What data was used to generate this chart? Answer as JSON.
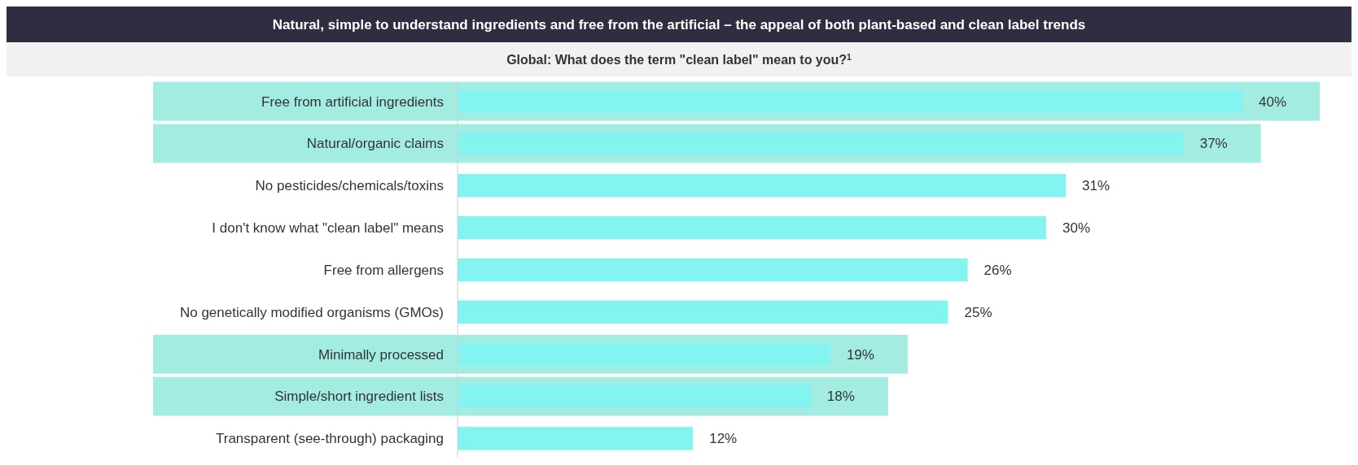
{
  "chart_data": {
    "type": "bar",
    "orientation": "horizontal",
    "title": "Natural, simple to understand ingredients and free from the artificial – the appeal of both plant-based and clean label trends",
    "subtitle": "Global: What does the term \"clean label\" mean to you?$^{1}$",
    "categories": [
      "Free from artificial ingredients",
      "Natural/organic claims",
      "No pesticides/chemicals/toxins",
      "I don't know what \"clean label\" means",
      "Free from allergens",
      "No genetically modified organisms (GMOs)",
      "Minimally processed",
      "Simple/short ingredient lists",
      "Transparent (see-through) packaging"
    ],
    "values": [
      40,
      37,
      31,
      30,
      26,
      25,
      19,
      18,
      12
    ],
    "value_labels": [
      "40%",
      "37%",
      "31%",
      "30%",
      "26%",
      "25%",
      "19%",
      "18%",
      "12%"
    ],
    "color": "#84f4f0",
    "bands": [
      {
        "axis": "y",
        "from": "Free from artificial ingredients",
        "to": "Free from artificial ingredients",
        "color": "#a3ece2"
      },
      {
        "axis": "y",
        "from": "Natural/organic claims",
        "to": "Natural/organic claims",
        "color": "#a3ece2"
      },
      {
        "axis": "y",
        "from": "Minimally processed",
        "to": "Minimally processed",
        "color": "#a3ece2"
      },
      {
        "axis": "y",
        "from": "Simple/short ingredient lists",
        "to": "Simple/short ingredient lists",
        "color": "#a3ece2"
      }
    ]
  }
}
